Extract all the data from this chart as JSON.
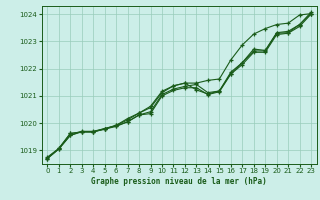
{
  "title": "Graphe pression niveau de la mer (hPa)",
  "bg_color": "#cceee8",
  "grid_color": "#99ccbb",
  "line_color": "#1a5c1a",
  "xlim": [
    -0.5,
    23.5
  ],
  "ylim": [
    1018.5,
    1024.3
  ],
  "yticks": [
    1019,
    1020,
    1021,
    1022,
    1023,
    1024
  ],
  "xticks": [
    0,
    1,
    2,
    3,
    4,
    5,
    6,
    7,
    8,
    9,
    10,
    11,
    12,
    13,
    14,
    15,
    16,
    17,
    18,
    19,
    20,
    21,
    22,
    23
  ],
  "series1": [
    1018.7,
    1019.05,
    1019.55,
    1019.7,
    1019.7,
    1019.8,
    1019.9,
    1020.05,
    1020.3,
    1020.35,
    1021.0,
    1021.2,
    1021.3,
    1021.3,
    1021.05,
    1021.15,
    1021.8,
    1022.15,
    1022.6,
    1022.6,
    1023.25,
    1023.3,
    1023.55,
    1024.0
  ],
  "series2": [
    1018.7,
    1019.05,
    1019.55,
    1019.68,
    1019.68,
    1019.78,
    1019.88,
    1020.05,
    1020.3,
    1020.42,
    1021.05,
    1021.25,
    1021.35,
    1021.42,
    1021.12,
    1021.18,
    1021.82,
    1022.22,
    1022.65,
    1022.65,
    1023.3,
    1023.32,
    1023.62,
    1024.02
  ],
  "series3": [
    1018.72,
    1019.07,
    1019.62,
    1019.68,
    1019.68,
    1019.78,
    1019.92,
    1020.12,
    1020.37,
    1020.57,
    1021.12,
    1021.37,
    1021.47,
    1021.22,
    1021.07,
    1021.18,
    1021.87,
    1022.22,
    1022.72,
    1022.67,
    1023.32,
    1023.37,
    1023.62,
    1024.07
  ],
  "series4": [
    1018.75,
    1019.07,
    1019.62,
    1019.68,
    1019.68,
    1019.8,
    1019.92,
    1020.17,
    1020.37,
    1020.62,
    1021.17,
    1021.37,
    1021.47,
    1021.47,
    1021.57,
    1021.62,
    1022.32,
    1022.87,
    1023.27,
    1023.47,
    1023.62,
    1023.67,
    1023.97,
    1024.02
  ]
}
